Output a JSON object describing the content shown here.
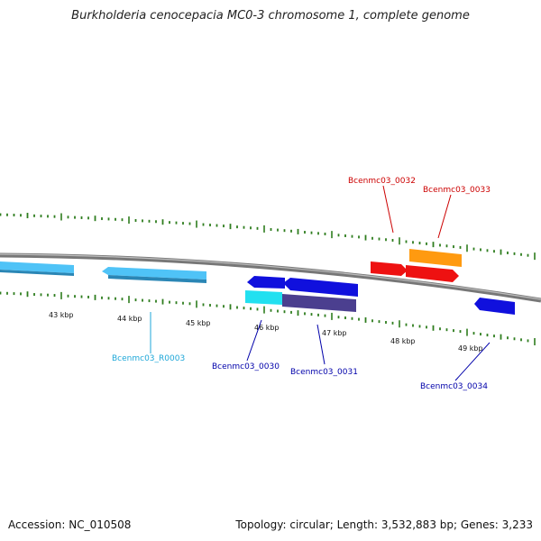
{
  "title": "Burkholderia cenocepacia MC0-3 chromosome 1, complete genome",
  "footer": {
    "accession": "Accession: NC_010508",
    "summary": "Topology: circular; Length: 3,532,883 bp; Genes: 3,233"
  },
  "scale_labels": [
    "43 kbp",
    "44 kbp",
    "45 kbp",
    "46 kbp",
    "47 kbp",
    "48 kbp",
    "49 kbp"
  ],
  "colors": {
    "backbone": "#8a8a8a",
    "tick": "#2e7d1e",
    "light_blue": "#4fc3f7",
    "blue": "#1010dd",
    "cyan": "#22e0f0",
    "navy": "#4b3f8f",
    "red": "#ee1111",
    "orange": "#ff9a10",
    "label_red": "#cc0000",
    "label_blue": "#0000aa",
    "label_cyan": "#1ea7d8"
  },
  "genes": [
    {
      "name": "Bcenmc03_R0003",
      "color": "light_blue"
    },
    {
      "name": "Bcenmc03_0030",
      "color": "blue"
    },
    {
      "name": "Bcenmc03_0031",
      "color": "blue"
    },
    {
      "name": "Bcenmc03_0032",
      "color": "red"
    },
    {
      "name": "Bcenmc03_0033",
      "color": "red"
    },
    {
      "name": "Bcenmc03_0034",
      "color": "blue"
    }
  ]
}
